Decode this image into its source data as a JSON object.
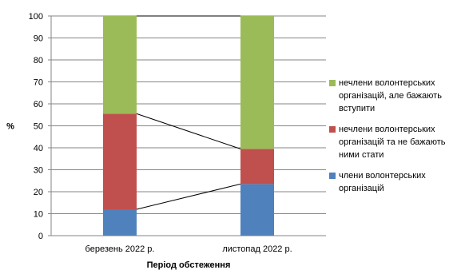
{
  "chart_data": {
    "type": "bar",
    "stacked": true,
    "categories": [
      "березень 2022 р.",
      "листопад 2022 р."
    ],
    "series": [
      {
        "name": "члени волонтерських організацій",
        "color": "#4f81bd",
        "values": [
          12,
          23.5
        ]
      },
      {
        "name": "нечлени волонтерських організацій та не бажають ними стати",
        "color": "#c0504d",
        "values": [
          43.5,
          16
        ]
      },
      {
        "name": "нечлени волонтерських організацій, але бажають вступити",
        "color": "#9bbb59",
        "values": [
          44.5,
          60.5
        ]
      }
    ],
    "legend_order": [
      2,
      1,
      0
    ],
    "legend_position": "right",
    "ylabel": "%",
    "xlabel": "Період обстеження",
    "ylim": [
      0,
      100
    ],
    "yticks": [
      0,
      10,
      20,
      30,
      40,
      50,
      60,
      70,
      80,
      90,
      100
    ],
    "grid": true,
    "series_lines": true
  }
}
